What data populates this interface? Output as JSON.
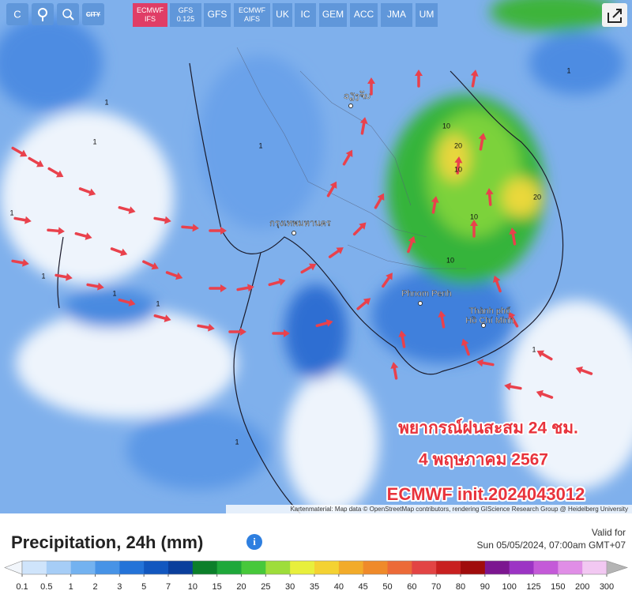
{
  "toolbar": {
    "icons": [
      "C",
      "CITY"
    ],
    "models": [
      "ECMWF IFS",
      "GFS 0.125",
      "GFS",
      "ECMWF AIFS",
      "UK",
      "IC",
      "GEM",
      "ACC",
      "JMA",
      "UM"
    ],
    "active": 0
  },
  "map": {
    "places": [
      "ວຽງຈັນ",
      "กรุงเทพมหานคร",
      "Phnom Penh",
      "Thành phố Hồ Chí Minh"
    ],
    "contour_labels": [
      "1",
      "1",
      "1",
      "1",
      "1",
      "1",
      "1",
      "1",
      "10",
      "10",
      "20",
      "10",
      "20",
      "10",
      "1",
      "1"
    ],
    "overlay": [
      "พยากรณ์ฝนสะสม 24 ชม.",
      "4 พฤษภาคม 2567",
      "ECMWF init.2024043012"
    ],
    "attribution": "Kartenmaterial: Map data © OpenStreetMap contributors, rendering GIScience Research Group @ Heidelberg University"
  },
  "legend": {
    "title": "Precipitation, 24h (mm)",
    "valid_label": "Valid for",
    "valid_time": "Sun 05/05/2024, 07:00am GMT+07",
    "ticks": [
      0.1,
      0.5,
      1,
      2,
      3,
      5,
      7,
      10,
      15,
      20,
      25,
      30,
      35,
      40,
      45,
      50,
      60,
      70,
      80,
      90,
      100,
      125,
      150,
      200,
      300
    ],
    "colors": [
      "#cfe4fb",
      "#a6cdf6",
      "#73b2f0",
      "#4793e6",
      "#2473d8",
      "#1257bf",
      "#0a3f9c",
      "#0c7f2a",
      "#1fa83a",
      "#47c83a",
      "#9edd3a",
      "#e8ef3c",
      "#f4d232",
      "#f2ab2a",
      "#ef8a2a",
      "#ec6a38",
      "#e24444",
      "#c82020",
      "#a00c0c",
      "#7c1690",
      "#9c34c4",
      "#c45ad8",
      "#e08ee6",
      "#f2c8f2"
    ],
    "low_color": "#f2f6fb",
    "high_color": "#b4b4b4"
  }
}
